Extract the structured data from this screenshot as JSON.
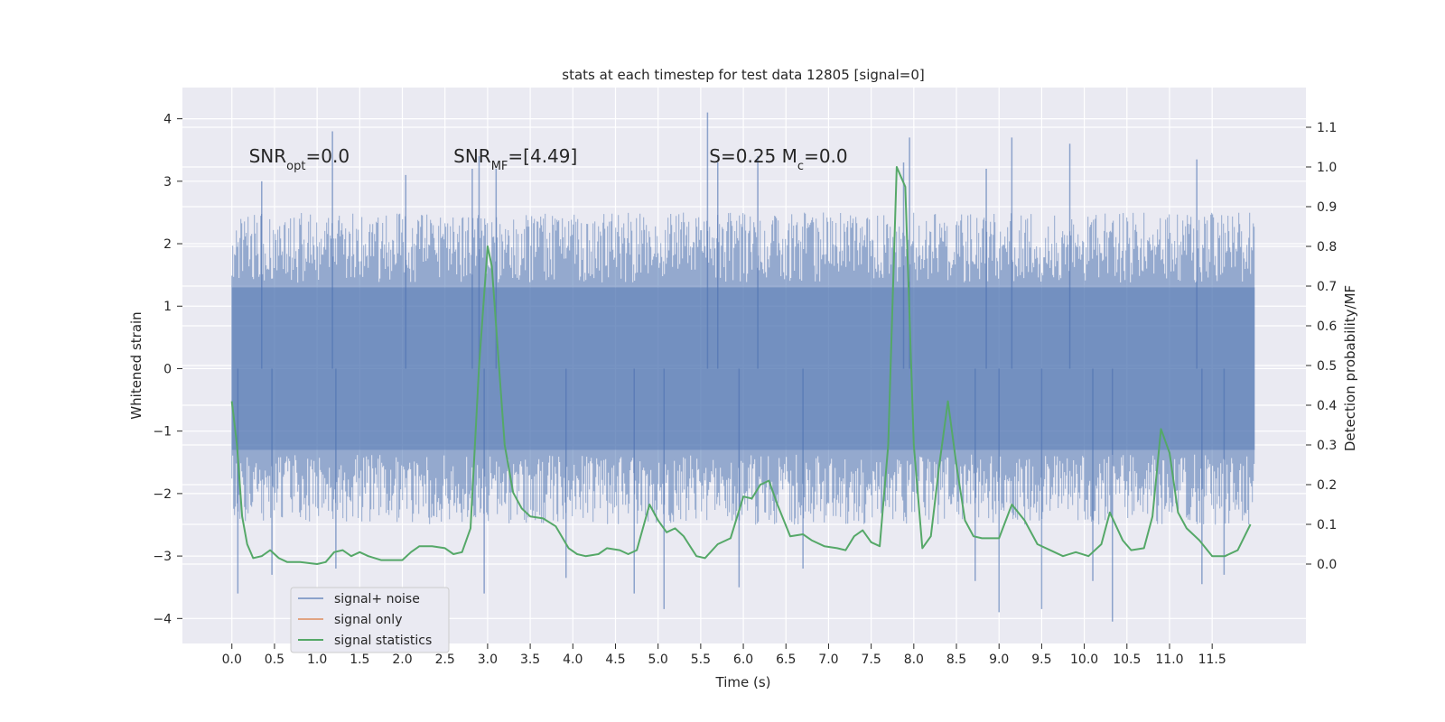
{
  "chart_data": {
    "type": "line",
    "title": "stats at each timestep for test data 12805 [signal=0]",
    "xlabel": "Time (s)",
    "ylabel_left": "Whitened strain",
    "ylabel_right": "Detection probability/MF",
    "xlim": [
      -0.58,
      12.6
    ],
    "ylim_left": [
      -4.4,
      4.5
    ],
    "ylim_right": [
      -0.2,
      1.2
    ],
    "x_ticks": [
      0.0,
      0.5,
      1.0,
      1.5,
      2.0,
      2.5,
      3.0,
      3.5,
      4.0,
      4.5,
      5.0,
      5.5,
      6.0,
      6.5,
      7.0,
      7.5,
      8.0,
      8.5,
      9.0,
      9.5,
      10.0,
      10.5,
      11.0,
      11.5
    ],
    "x_tick_labels": [
      "0.0",
      "0.5",
      "1.0",
      "1.5",
      "2.0",
      "2.5",
      "3.0",
      "3.5",
      "4.0",
      "4.5",
      "5.0",
      "5.5",
      "6.0",
      "6.5",
      "7.0",
      "7.5",
      "8.0",
      "8.5",
      "9.0",
      "9.5",
      "10.0",
      "10.5",
      "11.0",
      "11.5"
    ],
    "y_left_ticks": [
      4,
      3,
      2,
      1,
      0,
      -1,
      -2,
      -3,
      -4
    ],
    "y_left_tick_labels": [
      "4",
      "3",
      "2",
      "1",
      "0",
      "−1",
      "−2",
      "−3",
      "−4"
    ],
    "y_right_ticks": [
      1.1,
      1.0,
      0.9,
      0.8,
      0.7,
      0.6,
      0.5,
      0.4,
      0.3,
      0.2,
      0.1,
      0.0
    ],
    "y_right_tick_labels": [
      "1.1",
      "1.0",
      "0.9",
      "0.8",
      "0.7",
      "0.6",
      "0.5",
      "0.4",
      "0.3",
      "0.2",
      "0.1",
      "0.0"
    ],
    "grid": true,
    "legend_position": "lower-left",
    "annotations": [
      {
        "id": "snr-opt",
        "text": "SNR_opt=0.0",
        "x": 0.2,
        "y": 3.3
      },
      {
        "id": "snr-mf",
        "text": "SNR_MF=[4.49]",
        "x": 2.6,
        "y": 3.3
      },
      {
        "id": "s-mc",
        "text": "S=0.25  M_c=0.0",
        "x": 5.6,
        "y": 3.3
      }
    ],
    "series": [
      {
        "name": "signal+ noise",
        "axis": "left",
        "color": "#4c72b0",
        "opacity": 0.5,
        "x_start": 0.0,
        "x_end": 12.0,
        "envelope_core": [
          -1.3,
          1.3
        ],
        "typical_range": [
          -2.5,
          2.5
        ],
        "spikes": [
          {
            "x": 0.07,
            "y": -3.6
          },
          {
            "x": 0.35,
            "y": 3.0
          },
          {
            "x": 0.47,
            "y": -3.3
          },
          {
            "x": 1.18,
            "y": 3.8
          },
          {
            "x": 1.22,
            "y": -3.2
          },
          {
            "x": 2.04,
            "y": 3.1
          },
          {
            "x": 2.82,
            "y": 3.2
          },
          {
            "x": 2.96,
            "y": -3.6
          },
          {
            "x": 2.9,
            "y": 3.4
          },
          {
            "x": 3.1,
            "y": 3.2
          },
          {
            "x": 3.92,
            "y": -3.35
          },
          {
            "x": 4.72,
            "y": -3.6
          },
          {
            "x": 5.07,
            "y": -3.85
          },
          {
            "x": 5.58,
            "y": 4.1
          },
          {
            "x": 5.7,
            "y": 3.3
          },
          {
            "x": 5.95,
            "y": -3.5
          },
          {
            "x": 6.17,
            "y": 3.4
          },
          {
            "x": 6.7,
            "y": -3.2
          },
          {
            "x": 7.88,
            "y": 3.3
          },
          {
            "x": 7.95,
            "y": 3.7
          },
          {
            "x": 8.72,
            "y": -3.4
          },
          {
            "x": 8.85,
            "y": 3.2
          },
          {
            "x": 9.0,
            "y": -3.9
          },
          {
            "x": 9.15,
            "y": 3.7
          },
          {
            "x": 9.5,
            "y": -3.85
          },
          {
            "x": 9.83,
            "y": 3.6
          },
          {
            "x": 10.1,
            "y": -3.4
          },
          {
            "x": 10.33,
            "y": -4.05
          },
          {
            "x": 11.32,
            "y": 3.35
          },
          {
            "x": 11.38,
            "y": -3.45
          },
          {
            "x": 11.64,
            "y": -3.3
          }
        ]
      },
      {
        "name": "signal only",
        "axis": "left",
        "color": "#dd8452",
        "points": []
      },
      {
        "name": "signal statistics",
        "axis": "right",
        "color": "#55a868",
        "points": [
          [
            0.0,
            0.41
          ],
          [
            0.06,
            0.3
          ],
          [
            0.12,
            0.12
          ],
          [
            0.18,
            0.05
          ],
          [
            0.25,
            0.015
          ],
          [
            0.35,
            0.02
          ],
          [
            0.45,
            0.035
          ],
          [
            0.55,
            0.015
          ],
          [
            0.65,
            0.005
          ],
          [
            0.8,
            0.005
          ],
          [
            1.0,
            0.0
          ],
          [
            1.1,
            0.005
          ],
          [
            1.2,
            0.03
          ],
          [
            1.3,
            0.035
          ],
          [
            1.4,
            0.02
          ],
          [
            1.5,
            0.03
          ],
          [
            1.6,
            0.02
          ],
          [
            1.75,
            0.01
          ],
          [
            2.0,
            0.01
          ],
          [
            2.1,
            0.03
          ],
          [
            2.2,
            0.045
          ],
          [
            2.35,
            0.045
          ],
          [
            2.5,
            0.04
          ],
          [
            2.6,
            0.025
          ],
          [
            2.7,
            0.03
          ],
          [
            2.8,
            0.09
          ],
          [
            2.9,
            0.5
          ],
          [
            3.0,
            0.8
          ],
          [
            3.05,
            0.75
          ],
          [
            3.1,
            0.6
          ],
          [
            3.2,
            0.3
          ],
          [
            3.3,
            0.18
          ],
          [
            3.4,
            0.14
          ],
          [
            3.5,
            0.12
          ],
          [
            3.65,
            0.115
          ],
          [
            3.8,
            0.095
          ],
          [
            3.95,
            0.04
          ],
          [
            4.05,
            0.025
          ],
          [
            4.15,
            0.02
          ],
          [
            4.3,
            0.025
          ],
          [
            4.4,
            0.04
          ],
          [
            4.55,
            0.035
          ],
          [
            4.65,
            0.025
          ],
          [
            4.75,
            0.035
          ],
          [
            4.9,
            0.15
          ],
          [
            5.0,
            0.11
          ],
          [
            5.1,
            0.08
          ],
          [
            5.2,
            0.09
          ],
          [
            5.3,
            0.07
          ],
          [
            5.45,
            0.02
          ],
          [
            5.55,
            0.015
          ],
          [
            5.7,
            0.05
          ],
          [
            5.85,
            0.065
          ],
          [
            6.0,
            0.17
          ],
          [
            6.1,
            0.165
          ],
          [
            6.2,
            0.2
          ],
          [
            6.3,
            0.21
          ],
          [
            6.4,
            0.15
          ],
          [
            6.55,
            0.07
          ],
          [
            6.7,
            0.075
          ],
          [
            6.8,
            0.06
          ],
          [
            6.95,
            0.045
          ],
          [
            7.1,
            0.04
          ],
          [
            7.2,
            0.035
          ],
          [
            7.3,
            0.07
          ],
          [
            7.4,
            0.085
          ],
          [
            7.5,
            0.055
          ],
          [
            7.6,
            0.045
          ],
          [
            7.7,
            0.3
          ],
          [
            7.8,
            1.0
          ],
          [
            7.9,
            0.95
          ],
          [
            8.0,
            0.3
          ],
          [
            8.1,
            0.04
          ],
          [
            8.2,
            0.07
          ],
          [
            8.3,
            0.25
          ],
          [
            8.4,
            0.41
          ],
          [
            8.5,
            0.25
          ],
          [
            8.6,
            0.11
          ],
          [
            8.7,
            0.07
          ],
          [
            8.8,
            0.065
          ],
          [
            9.0,
            0.065
          ],
          [
            9.15,
            0.15
          ],
          [
            9.3,
            0.11
          ],
          [
            9.45,
            0.05
          ],
          [
            9.65,
            0.03
          ],
          [
            9.75,
            0.02
          ],
          [
            9.9,
            0.03
          ],
          [
            10.05,
            0.02
          ],
          [
            10.2,
            0.05
          ],
          [
            10.3,
            0.13
          ],
          [
            10.45,
            0.06
          ],
          [
            10.55,
            0.035
          ],
          [
            10.7,
            0.04
          ],
          [
            10.8,
            0.12
          ],
          [
            10.9,
            0.34
          ],
          [
            11.0,
            0.28
          ],
          [
            11.1,
            0.13
          ],
          [
            11.2,
            0.09
          ],
          [
            11.35,
            0.06
          ],
          [
            11.5,
            0.02
          ],
          [
            11.65,
            0.02
          ],
          [
            11.8,
            0.035
          ],
          [
            11.95,
            0.1
          ]
        ]
      }
    ]
  }
}
